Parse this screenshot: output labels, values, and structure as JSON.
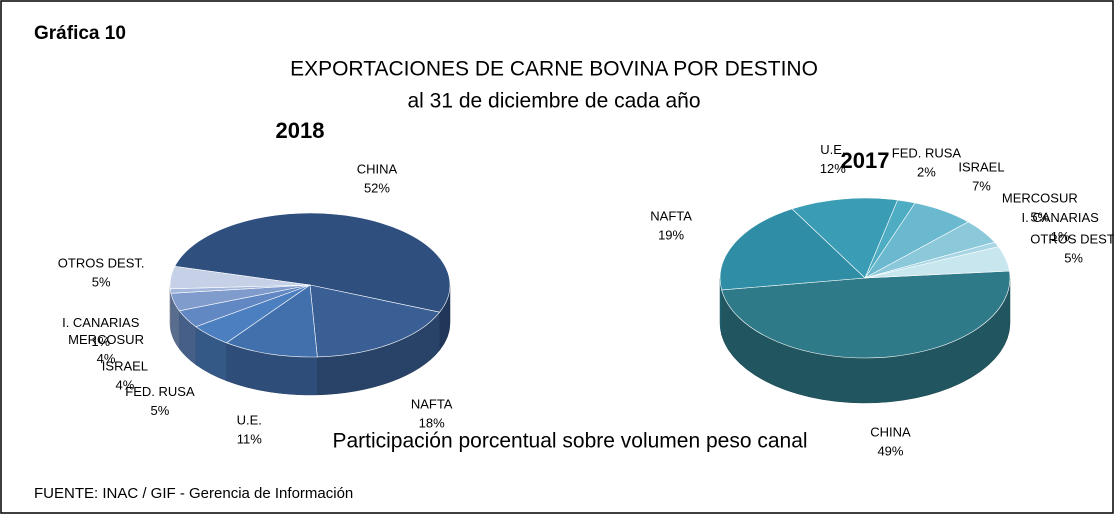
{
  "label": "Gráfica 10",
  "title": "EXPORTACIONES DE CARNE BOVINA POR DESTINO",
  "subtitle": "al 31 de diciembre de cada año",
  "caption": "Participación porcentual sobre volumen peso canal",
  "source": "FUENTE: INAC / GIF - Gerencia de Información",
  "chart_data": [
    {
      "type": "pie",
      "title": "2018",
      "categories": [
        "CHINA",
        "NAFTA",
        "U.E.",
        "FED. RUSA",
        "ISRAEL",
        "MERCOSUR",
        "I. CANARIAS",
        "OTROS DEST."
      ],
      "values": [
        52,
        18,
        11,
        5,
        4,
        4,
        1,
        5
      ],
      "value_labels": [
        "52%",
        "18%",
        "11%",
        "5%",
        "4%",
        "4%",
        "1%",
        "5%"
      ],
      "colors": [
        "#2f4f7f",
        "#3a5f95",
        "#4170ad",
        "#4c7fbf",
        "#6288c3",
        "#7f9ccc",
        "#a4b6dc",
        "#c6d1e8"
      ]
    },
    {
      "type": "pie",
      "title": "2017",
      "categories": [
        "CHINA",
        "NAFTA",
        "U.E.",
        "FED. RUSA",
        "ISRAEL",
        "MERCOSUR",
        "I. CANARIAS",
        "OTROS DEST."
      ],
      "values": [
        49,
        19,
        12,
        2,
        7,
        5,
        1,
        5
      ],
      "value_labels": [
        "49%",
        "19%",
        "12%",
        "2%",
        "7%",
        "5%",
        "1%",
        "5%"
      ],
      "colors": [
        "#2f7a88",
        "#2f8ea5",
        "#3a9db5",
        "#4eacc3",
        "#6bb9cf",
        "#8ac8da",
        "#a8d6e4",
        "#c8e6ee"
      ]
    }
  ]
}
